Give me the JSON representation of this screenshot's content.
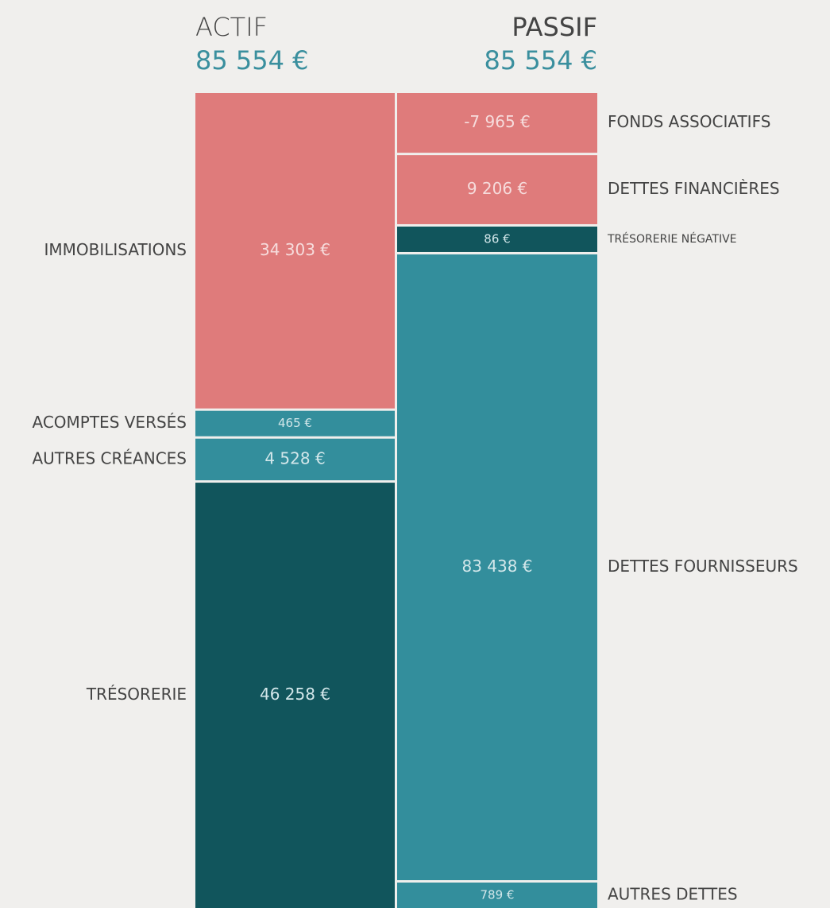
{
  "chart_data": {
    "type": "bar",
    "stacked": true,
    "series": [
      {
        "name": "ACTIF",
        "total": "85 554 €",
        "categories": [
          "IMMOBILISATIONS",
          "ACOMPTES VERSÉS",
          "AUTRES CRÉANCES",
          "TRÉSORERIE"
        ],
        "values": [
          34303,
          465,
          4528,
          46258
        ],
        "value_labels": [
          "34 303 €",
          "465 €",
          "4 528 €",
          "46 258 €"
        ],
        "colors": [
          "#df7b7b",
          "#338e9c",
          "#338e9c",
          "#11555c"
        ]
      },
      {
        "name": "PASSIF",
        "total": "85 554 €",
        "categories": [
          "FONDS ASSOCIATIFS",
          "DETTES FINANCIÈRES",
          "TRÉSORERIE NÉGATIVE",
          "DETTES FOURNISSEURS",
          "AUTRES DETTES"
        ],
        "values": [
          -7965,
          9206,
          86,
          83438,
          789
        ],
        "value_labels": [
          "-7 965 €",
          "9 206 €",
          "86 €",
          "83 438 €",
          "789 €"
        ],
        "colors": [
          "#df7b7b",
          "#df7b7b",
          "#11555c",
          "#338e9c",
          "#338e9c"
        ]
      }
    ]
  }
}
